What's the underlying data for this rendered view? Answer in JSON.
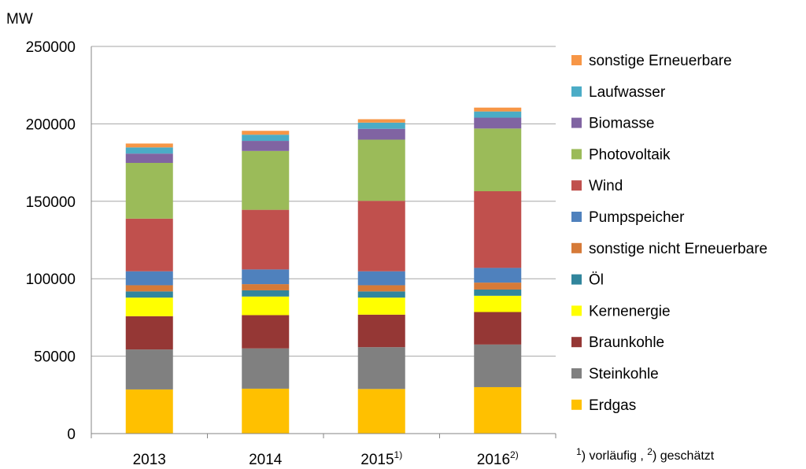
{
  "chart_data": {
    "type": "bar",
    "stacked": true,
    "ylabel": "MW",
    "ylim": [
      0,
      250000
    ],
    "yticks": [
      "0",
      "50000",
      "100000",
      "150000",
      "200000",
      "250000"
    ],
    "grid": true,
    "legend_position": "right",
    "categories": [
      {
        "label": "2013",
        "sup": ""
      },
      {
        "label": "2014",
        "sup": ""
      },
      {
        "label": "2015",
        "sup": "1)"
      },
      {
        "label": "2016",
        "sup": "2)"
      }
    ],
    "series": [
      {
        "name": "Erdgas",
        "color": "#ffc000",
        "values": [
          28500,
          29000,
          28800,
          30000
        ]
      },
      {
        "name": "Steinkohle",
        "color": "#808080",
        "values": [
          25800,
          26000,
          27000,
          27500
        ]
      },
      {
        "name": "Braunkohle",
        "color": "#953735",
        "values": [
          21500,
          21500,
          21000,
          21000
        ]
      },
      {
        "name": "Kernenergie",
        "color": "#ffff00",
        "values": [
          12000,
          12000,
          11000,
          10500
        ]
      },
      {
        "name": "Öl",
        "color": "#31859c",
        "values": [
          4000,
          4000,
          4000,
          4000
        ]
      },
      {
        "name": "sonstige nicht Erneuerbare",
        "color": "#d67a38",
        "values": [
          4000,
          4000,
          4000,
          4500
        ]
      },
      {
        "name": "Pumpspeicher",
        "color": "#4f81bd",
        "values": [
          9000,
          9500,
          9000,
          9500
        ]
      },
      {
        "name": "Wind",
        "color": "#c0504d",
        "values": [
          34000,
          38500,
          45500,
          49500
        ]
      },
      {
        "name": "Photovoltaik",
        "color": "#9bbb59",
        "values": [
          36000,
          38000,
          39500,
          40500
        ]
      },
      {
        "name": "Biomasse",
        "color": "#8064a2",
        "values": [
          6000,
          6500,
          7000,
          7000
        ]
      },
      {
        "name": "Laufwasser",
        "color": "#4bacc6",
        "values": [
          4000,
          4000,
          4000,
          4000
        ]
      },
      {
        "name": "sonstige Erneuerbare",
        "color": "#f79646",
        "values": [
          2500,
          2500,
          2200,
          2500
        ]
      }
    ],
    "footnote": {
      "m1": "1",
      "t1": ") vorläufig , ",
      "m2": "2",
      "t2": ") geschätzt"
    }
  }
}
